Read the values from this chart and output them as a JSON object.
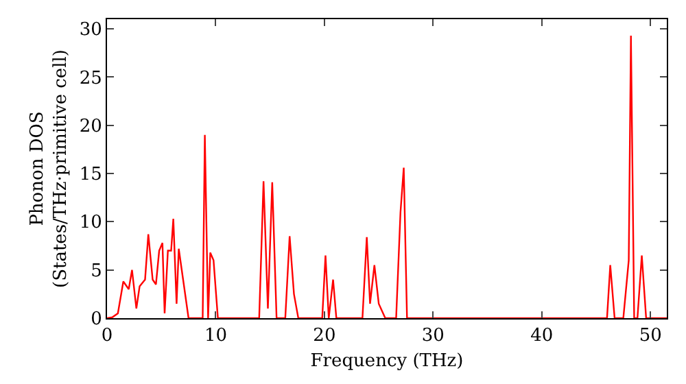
{
  "chart_data": {
    "type": "line",
    "xlabel": "Frequency (THz)",
    "ylabel": "Phonon DOS\n(States/THz·primitive cell)",
    "xlim": [
      0,
      51.5
    ],
    "ylim": [
      0,
      31
    ],
    "xticks": [
      0,
      10,
      20,
      30,
      40,
      50
    ],
    "yticks": [
      0,
      5,
      10,
      15,
      20,
      25,
      30
    ],
    "grid": false,
    "marker": "none",
    "line_style": "solid",
    "series": [
      {
        "color": "#ff0000",
        "x": [
          0,
          0.5,
          1,
          1.5,
          2,
          2.3,
          2.7,
          3,
          3.5,
          3.8,
          4.2,
          4.5,
          4.8,
          5.1,
          5.3,
          5.6,
          5.9,
          6.1,
          6.4,
          6.6,
          7,
          7.5,
          8.5,
          8.8,
          9.0,
          9.3,
          9.5,
          9.8,
          10.2,
          14,
          14.4,
          14.8,
          15.2,
          15.6,
          16.4,
          16.8,
          17.2,
          17.6,
          19.8,
          20.1,
          20.4,
          20.8,
          21.1,
          23.5,
          23.9,
          24.2,
          24.6,
          25,
          25.6,
          26.6,
          27,
          27.3,
          27.6,
          46,
          46.3,
          46.7,
          47.5,
          48,
          48.2,
          48.5,
          48.8,
          49.2,
          49.6,
          51.5
        ],
        "values": [
          0,
          0.1,
          0.5,
          3.8,
          3,
          5,
          1,
          3.3,
          4,
          8.7,
          4,
          3.5,
          7,
          7.8,
          0.5,
          7,
          7,
          10.3,
          1.5,
          7.2,
          4,
          0,
          0,
          0,
          19,
          0,
          6.8,
          6,
          0,
          0,
          14.2,
          1,
          14.1,
          0,
          0,
          8.5,
          2.5,
          0,
          0,
          6.5,
          0,
          4,
          0,
          0,
          8.4,
          1.5,
          5.5,
          1.5,
          0,
          0,
          11,
          15.6,
          0,
          0,
          5.5,
          0,
          0,
          6,
          29.3,
          0,
          0,
          6.5,
          0,
          0
        ]
      }
    ]
  }
}
